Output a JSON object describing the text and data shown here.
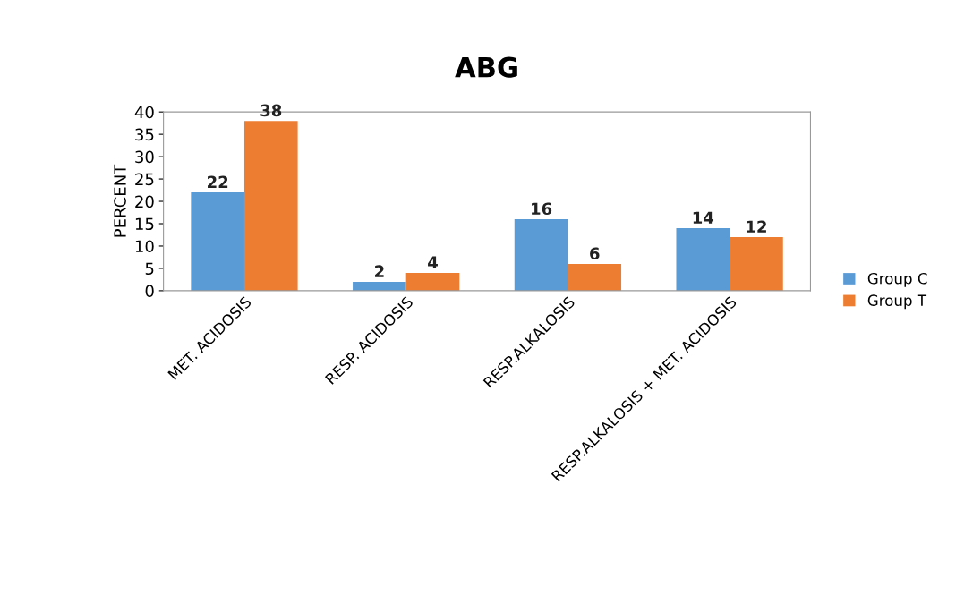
{
  "chart_data": {
    "type": "bar",
    "title": "ABG",
    "ylabel": "PERCENT",
    "categories": [
      "MET. ACIDOSIS",
      "RESP. ACIDOSIS",
      "RESP.ALKALOSIS",
      "RESP.ALKALOSIS + MET. ACIDOSIS"
    ],
    "series": [
      {
        "name": "Group C",
        "color": "#5b9bd5",
        "values": [
          22,
          2,
          16,
          14
        ]
      },
      {
        "name": "Group T",
        "color": "#ed7d31",
        "values": [
          38,
          4,
          6,
          12
        ]
      }
    ],
    "ylim": [
      0,
      40
    ],
    "yticks": [
      0,
      5,
      10,
      15,
      20,
      25,
      30,
      35,
      40
    ],
    "grid": false,
    "legend": "right",
    "data_labels": true
  }
}
